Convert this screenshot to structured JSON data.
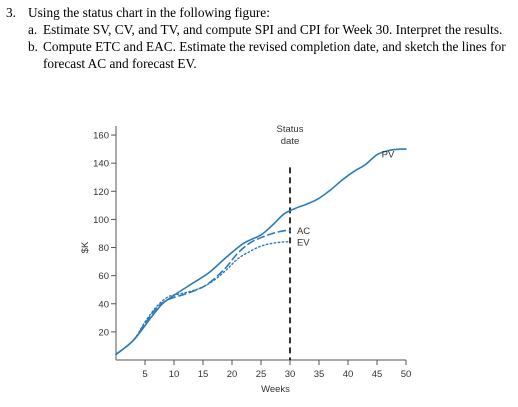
{
  "question": {
    "number": "3.",
    "intro": "Using the status chart in the following figure:",
    "parts": [
      {
        "letter": "a.",
        "text": "Estimate SV, CV, and TV, and compute SPI and CPI for Week 30. Interpret the results."
      },
      {
        "letter": "b.",
        "text": "Compute ETC and EAC. Estimate the revised completion date, and sketch the lines for forecast AC and forecast EV."
      }
    ]
  },
  "chart_data": {
    "type": "line",
    "xlabel": "Weeks",
    "ylabel": "$K",
    "xlim": [
      0,
      50
    ],
    "ylim": [
      0,
      170
    ],
    "xticks": [
      5,
      10,
      15,
      20,
      25,
      30,
      35,
      40,
      45,
      50
    ],
    "yticks": [
      20,
      40,
      60,
      80,
      100,
      120,
      140,
      160
    ],
    "grid": false,
    "status_date_line": {
      "x": 30,
      "label_line1": "Status",
      "label_line2": "date"
    },
    "series": [
      {
        "name": "PV",
        "style": "solid",
        "color": "#2e7bb6",
        "points": [
          [
            0,
            4
          ],
          [
            3,
            14
          ],
          [
            6,
            30
          ],
          [
            8,
            40
          ],
          [
            10,
            46
          ],
          [
            13,
            54
          ],
          [
            16,
            62
          ],
          [
            19,
            73
          ],
          [
            22,
            83
          ],
          [
            25,
            89
          ],
          [
            27,
            96
          ],
          [
            29,
            104
          ],
          [
            31,
            108
          ],
          [
            33,
            111
          ],
          [
            35,
            115
          ],
          [
            37,
            121
          ],
          [
            39,
            128
          ],
          [
            41,
            134
          ],
          [
            43,
            139
          ],
          [
            45,
            146
          ],
          [
            47,
            149
          ],
          [
            49,
            150
          ],
          [
            50,
            150
          ]
        ]
      },
      {
        "name": "AC",
        "style": "dashed",
        "color": "#2e7bb6",
        "points": [
          [
            0,
            4
          ],
          [
            3,
            14
          ],
          [
            5,
            26
          ],
          [
            7,
            37
          ],
          [
            9,
            43
          ],
          [
            12,
            47
          ],
          [
            15,
            52
          ],
          [
            17,
            58
          ],
          [
            19,
            66
          ],
          [
            21,
            76
          ],
          [
            23,
            83
          ],
          [
            25,
            87
          ],
          [
            27,
            90
          ],
          [
            29,
            92
          ],
          [
            30,
            92
          ]
        ]
      },
      {
        "name": "EV",
        "style": "dotted",
        "color": "#2e7bb6",
        "points": [
          [
            0,
            4
          ],
          [
            3,
            14
          ],
          [
            5,
            27
          ],
          [
            7,
            38
          ],
          [
            9,
            45
          ],
          [
            11,
            47
          ],
          [
            13,
            49
          ],
          [
            15,
            52
          ],
          [
            17,
            57
          ],
          [
            19,
            64
          ],
          [
            21,
            72
          ],
          [
            23,
            77
          ],
          [
            25,
            81
          ],
          [
            27,
            83
          ],
          [
            29,
            84
          ],
          [
            30,
            84
          ]
        ]
      }
    ]
  }
}
